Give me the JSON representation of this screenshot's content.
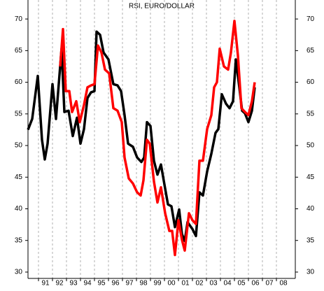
{
  "chart_data": {
    "type": "line",
    "title": "RSI, EURO/DOLLAR",
    "xlim": [
      1990.25,
      2009.35
    ],
    "ylim": [
      29,
      73
    ],
    "xticks": [
      {
        "value": 1991,
        "label": "91"
      },
      {
        "value": 1992,
        "label": "92"
      },
      {
        "value": 1993,
        "label": "93"
      },
      {
        "value": 1994,
        "label": "94"
      },
      {
        "value": 1995,
        "label": "95"
      },
      {
        "value": 1996,
        "label": "96"
      },
      {
        "value": 1997,
        "label": "97"
      },
      {
        "value": 1998,
        "label": "98"
      },
      {
        "value": 1999,
        "label": "99"
      },
      {
        "value": 2000,
        "label": "00"
      },
      {
        "value": 2001,
        "label": "01"
      },
      {
        "value": 2002,
        "label": "02"
      },
      {
        "value": 2003,
        "label": "03"
      },
      {
        "value": 2004,
        "label": "04"
      },
      {
        "value": 2005,
        "label": "05"
      },
      {
        "value": 2006,
        "label": "06"
      },
      {
        "value": 2007,
        "label": "07"
      },
      {
        "value": 2008,
        "label": "08"
      }
    ],
    "yticks": [
      30,
      35,
      40,
      45,
      50,
      55,
      60,
      65,
      70
    ],
    "grid": true,
    "series": [
      {
        "color": "#000000",
        "x": [
          1990.25,
          1990.55,
          1990.95,
          1991.25,
          1991.45,
          1991.65,
          1992.0,
          1992.25,
          1992.65,
          1992.85,
          1993.15,
          1993.45,
          1993.75,
          1994.0,
          1994.25,
          1994.5,
          1994.75,
          1995.0,
          1995.15,
          1995.4,
          1995.65,
          1996.0,
          1996.35,
          1996.65,
          1996.9,
          1997.15,
          1997.4,
          1997.75,
          1998.05,
          1998.35,
          1998.55,
          1998.75,
          1999.0,
          1999.25,
          1999.5,
          1999.75,
          2000.05,
          2000.25,
          2000.5,
          2000.75,
          2001.05,
          2001.25,
          2001.45,
          2001.65,
          2002.0,
          2002.25,
          2002.5,
          2002.75,
          2003.05,
          2003.35,
          2003.65,
          2003.85,
          2004.1,
          2004.4,
          2004.65,
          2004.9,
          2005.1,
          2005.35,
          2005.55,
          2005.75,
          2006.0,
          2006.25,
          2006.45
        ],
        "values": [
          52.5,
          54.2,
          61,
          50.9,
          47.8,
          50.3,
          59.7,
          54.2,
          65.3,
          55.3,
          55.5,
          51.5,
          54.4,
          50.3,
          52.6,
          57.5,
          58.4,
          58.6,
          68,
          67.5,
          64.7,
          63.6,
          59.7,
          59.5,
          58.6,
          54.8,
          50.3,
          49.8,
          48.1,
          47.4,
          48.1,
          53.7,
          53.1,
          47.6,
          45.4,
          47,
          43.2,
          40.7,
          40.4,
          37.1,
          39.9,
          36,
          34.9,
          37.9,
          36.8,
          35.7,
          42.6,
          42.1,
          45.9,
          48.7,
          52,
          52.6,
          58.1,
          56.6,
          55.9,
          57,
          63.6,
          59.2,
          55.5,
          55.1,
          53.7,
          55.5,
          59.2
        ]
      },
      {
        "color": "#ff0000",
        "x": [
          1992.55,
          1992.75,
          1992.95,
          1993.2,
          1993.4,
          1993.7,
          1993.95,
          1994.25,
          1994.5,
          1994.75,
          1995.0,
          1995.25,
          1995.5,
          1995.75,
          1996.05,
          1996.35,
          1996.65,
          1996.95,
          1997.15,
          1997.45,
          1997.75,
          1998.05,
          1998.3,
          1998.5,
          1998.75,
          1998.95,
          1999.25,
          1999.5,
          1999.75,
          2000.05,
          2000.35,
          2000.55,
          2000.75,
          2001.0,
          2001.25,
          2001.45,
          2001.75,
          2002.0,
          2002.25,
          2002.5,
          2002.75,
          2003.05,
          2003.35,
          2003.55,
          2003.75,
          2003.95,
          2004.25,
          2004.55,
          2004.75,
          2005.0,
          2005.25,
          2005.5,
          2005.75,
          2006.0,
          2006.25,
          2006.45
        ],
        "values": [
          62.5,
          68.4,
          58.6,
          58.6,
          55.3,
          57,
          53.7,
          56.4,
          59.2,
          59.5,
          59.7,
          65.8,
          64.7,
          62,
          61.4,
          55.9,
          55.5,
          53.7,
          48.1,
          44.8,
          44,
          42.6,
          42.1,
          44.5,
          50.9,
          50.3,
          44.3,
          41,
          43.4,
          39.3,
          36.5,
          36.5,
          32.7,
          38.2,
          35.1,
          33.4,
          39.3,
          38.2,
          37.6,
          47.6,
          47.6,
          52.6,
          54.8,
          59.2,
          60,
          65.3,
          62.5,
          62,
          64.7,
          69.7,
          64.2,
          55.9,
          55.3,
          54.8,
          57,
          60
        ]
      }
    ]
  }
}
